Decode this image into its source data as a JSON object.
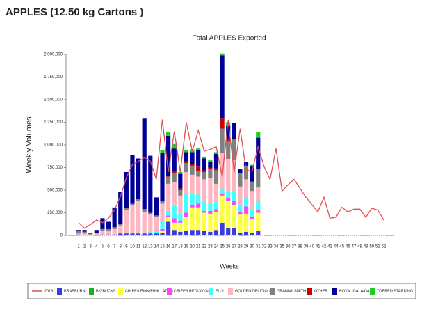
{
  "chart_data": {
    "type": "bar",
    "header": "APPLES (12.50 kg Cartons )",
    "title": "Total APPLES Exported",
    "xlabel": "Weeks",
    "ylabel": "Weekly Volumes",
    "ylim": [
      0,
      2000000
    ],
    "yticks": [
      0,
      {
        "value": 250000,
        "label": "250,000"
      },
      {
        "value": 500000,
        "label": "500,000"
      },
      {
        "value": 750000,
        "label": "750,000"
      },
      {
        "value": 1000000,
        "label": "1,000,000"
      },
      {
        "value": 1250000,
        "label": "1,250,000"
      },
      {
        "value": 1500000,
        "label": "1,500,000"
      },
      {
        "value": 1750000,
        "label": "1,750,000"
      },
      {
        "value": 2000000,
        "label": "2,000,000"
      }
    ],
    "categories": [
      "1",
      "2",
      "3",
      "4",
      "5",
      "6",
      "7",
      "8",
      "9",
      "10",
      "11",
      "12",
      "13",
      "14",
      "15",
      "16",
      "17",
      "18",
      "19",
      "20",
      "21",
      "22",
      "23",
      "24",
      "25",
      "26",
      "27",
      "28",
      "29",
      "30",
      "31",
      "32",
      "33",
      "34",
      "35",
      "36",
      "37",
      "38",
      "39",
      "40",
      "41",
      "42",
      "43",
      "44",
      "45",
      "46",
      "47",
      "48",
      "49",
      "50",
      "51",
      "52"
    ],
    "line": {
      "name": "2019",
      "color": "#e05050",
      "values": [
        140000,
        80000,
        120000,
        170000,
        140000,
        190000,
        280000,
        430000,
        640000,
        780000,
        820000,
        860000,
        820000,
        620000,
        1280000,
        700000,
        1150000,
        700000,
        1250000,
        930000,
        1160000,
        930000,
        950000,
        980000,
        650000,
        1270000,
        700000,
        1180000,
        720000,
        710000,
        980000,
        760000,
        620000,
        960000,
        490000,
        560000,
        620000,
        520000,
        420000,
        340000,
        260000,
        420000,
        190000,
        200000,
        310000,
        260000,
        290000,
        290000,
        200000,
        300000,
        280000,
        170000
      ]
    },
    "series": [
      {
        "name": "BRAEBURN",
        "color": "#3b3bdd",
        "values": [
          10000,
          0,
          0,
          0,
          10000,
          10000,
          10000,
          20000,
          20000,
          20000,
          20000,
          20000,
          20000,
          20000,
          30000,
          150000,
          60000,
          40000,
          50000,
          60000,
          60000,
          50000,
          40000,
          60000,
          140000,
          80000,
          80000,
          30000,
          40000,
          30000,
          50000,
          null,
          null,
          null,
          null,
          null,
          null,
          null,
          null,
          null,
          null,
          null,
          null,
          null,
          null,
          null,
          null,
          null,
          null,
          null,
          null,
          null
        ]
      },
      {
        "name": "BIGBUCKS",
        "color": "#22aa22",
        "values": [
          0,
          0,
          0,
          0,
          0,
          0,
          0,
          0,
          0,
          0,
          0,
          0,
          0,
          0,
          0,
          0,
          0,
          0,
          0,
          0,
          0,
          0,
          0,
          0,
          0,
          0,
          0,
          0,
          0,
          0,
          0,
          null,
          null,
          null,
          null,
          null,
          null,
          null,
          null,
          null,
          null,
          null,
          null,
          null,
          null,
          null,
          null,
          null,
          null,
          null,
          null,
          null
        ]
      },
      {
        "name": "CRIPPS PINK/PINK LADY®",
        "color": "#ffff44",
        "values": [
          0,
          0,
          0,
          0,
          0,
          0,
          0,
          0,
          0,
          0,
          0,
          0,
          0,
          0,
          20000,
          50000,
          80000,
          100000,
          150000,
          250000,
          250000,
          200000,
          200000,
          200000,
          300000,
          300000,
          250000,
          200000,
          200000,
          150000,
          200000,
          null,
          null,
          null,
          null,
          null,
          null,
          null,
          null,
          null,
          null,
          null,
          null,
          null,
          null,
          null,
          null,
          null,
          null,
          null,
          null,
          null
        ]
      },
      {
        "name": "CRIPPS RED/JOYA®",
        "color": "#ff44ff",
        "values": [
          0,
          0,
          0,
          0,
          0,
          0,
          0,
          10000,
          10000,
          10000,
          10000,
          10000,
          10000,
          10000,
          20000,
          20000,
          50000,
          20000,
          50000,
          30000,
          40000,
          20000,
          30000,
          30000,
          20000,
          30000,
          50000,
          30000,
          80000,
          30000,
          30000,
          null,
          null,
          null,
          null,
          null,
          null,
          null,
          null,
          null,
          null,
          null,
          null,
          null,
          null,
          null,
          null,
          null,
          null,
          null,
          null,
          null
        ]
      },
      {
        "name": "FUJI",
        "color": "#44ffff",
        "values": [
          0,
          0,
          0,
          0,
          0,
          0,
          0,
          0,
          0,
          0,
          0,
          0,
          20000,
          20000,
          80000,
          50000,
          150000,
          80000,
          200000,
          130000,
          100000,
          100000,
          80000,
          80000,
          50000,
          80000,
          100000,
          80000,
          100000,
          80000,
          100000,
          null,
          null,
          null,
          null,
          null,
          null,
          null,
          null,
          null,
          null,
          null,
          null,
          null,
          null,
          null,
          null,
          null,
          null,
          null,
          null,
          null
        ]
      },
      {
        "name": "GOLDEN DELICIOUS",
        "color": "#ffb6c1",
        "values": [
          10000,
          20000,
          10000,
          20000,
          40000,
          40000,
          60000,
          80000,
          250000,
          300000,
          350000,
          230000,
          180000,
          150000,
          200000,
          300000,
          250000,
          200000,
          250000,
          200000,
          200000,
          250000,
          280000,
          200000,
          400000,
          350000,
          350000,
          200000,
          200000,
          200000,
          150000,
          null,
          null,
          null,
          null,
          null,
          null,
          null,
          null,
          null,
          null,
          null,
          null,
          null,
          null,
          null,
          null,
          null,
          null,
          null,
          null,
          null
        ]
      },
      {
        "name": "GRANNY SMITH",
        "color": "#808080",
        "values": [
          30000,
          20000,
          10000,
          10000,
          20000,
          20000,
          20000,
          20000,
          20000,
          20000,
          20000,
          30000,
          20000,
          20000,
          30000,
          80000,
          100000,
          60000,
          100000,
          100000,
          60000,
          80000,
          100000,
          150000,
          270000,
          200000,
          230000,
          150000,
          150000,
          100000,
          200000,
          null,
          null,
          null,
          null,
          null,
          null,
          null,
          null,
          null,
          null,
          null,
          null,
          null,
          null,
          null,
          null,
          null,
          null,
          null,
          null,
          null
        ]
      },
      {
        "name": "OTHER",
        "color": "#cc0000",
        "values": [
          0,
          0,
          0,
          0,
          0,
          0,
          0,
          0,
          0,
          0,
          0,
          0,
          0,
          0,
          0,
          10000,
          20000,
          20000,
          20000,
          20000,
          50000,
          20000,
          20000,
          20000,
          110000,
          30000,
          0,
          0,
          0,
          10000,
          0,
          null,
          null,
          null,
          null,
          null,
          null,
          null,
          null,
          null,
          null,
          null,
          null,
          null,
          null,
          null,
          null,
          null,
          null,
          null,
          null,
          null
        ]
      },
      {
        "name": "ROYAL GALA/GALA",
        "color": "#000099",
        "values": [
          10000,
          20000,
          10000,
          30000,
          120000,
          80000,
          210000,
          350000,
          400000,
          540000,
          450000,
          1000000,
          630000,
          200000,
          530000,
          440000,
          250000,
          160000,
          100000,
          130000,
          180000,
          130000,
          60000,
          160000,
          700000,
          140000,
          180000,
          40000,
          40000,
          170000,
          350000,
          null,
          null,
          null,
          null,
          null,
          null,
          null,
          null,
          null,
          null,
          null,
          null,
          null,
          null,
          null,
          null,
          null,
          null,
          null,
          null,
          null
        ]
      },
      {
        "name": "TOPRED/STARKING",
        "color": "#22cc22",
        "values": [
          0,
          0,
          0,
          0,
          0,
          0,
          10000,
          0,
          0,
          0,
          0,
          0,
          0,
          0,
          30000,
          40000,
          50000,
          20000,
          20000,
          30000,
          20000,
          20000,
          20000,
          20000,
          20000,
          40000,
          0,
          0,
          0,
          10000,
          60000,
          null,
          null,
          null,
          null,
          null,
          null,
          null,
          null,
          null,
          null,
          null,
          null,
          null,
          null,
          null,
          null,
          null,
          null,
          null,
          null,
          null
        ]
      }
    ]
  }
}
